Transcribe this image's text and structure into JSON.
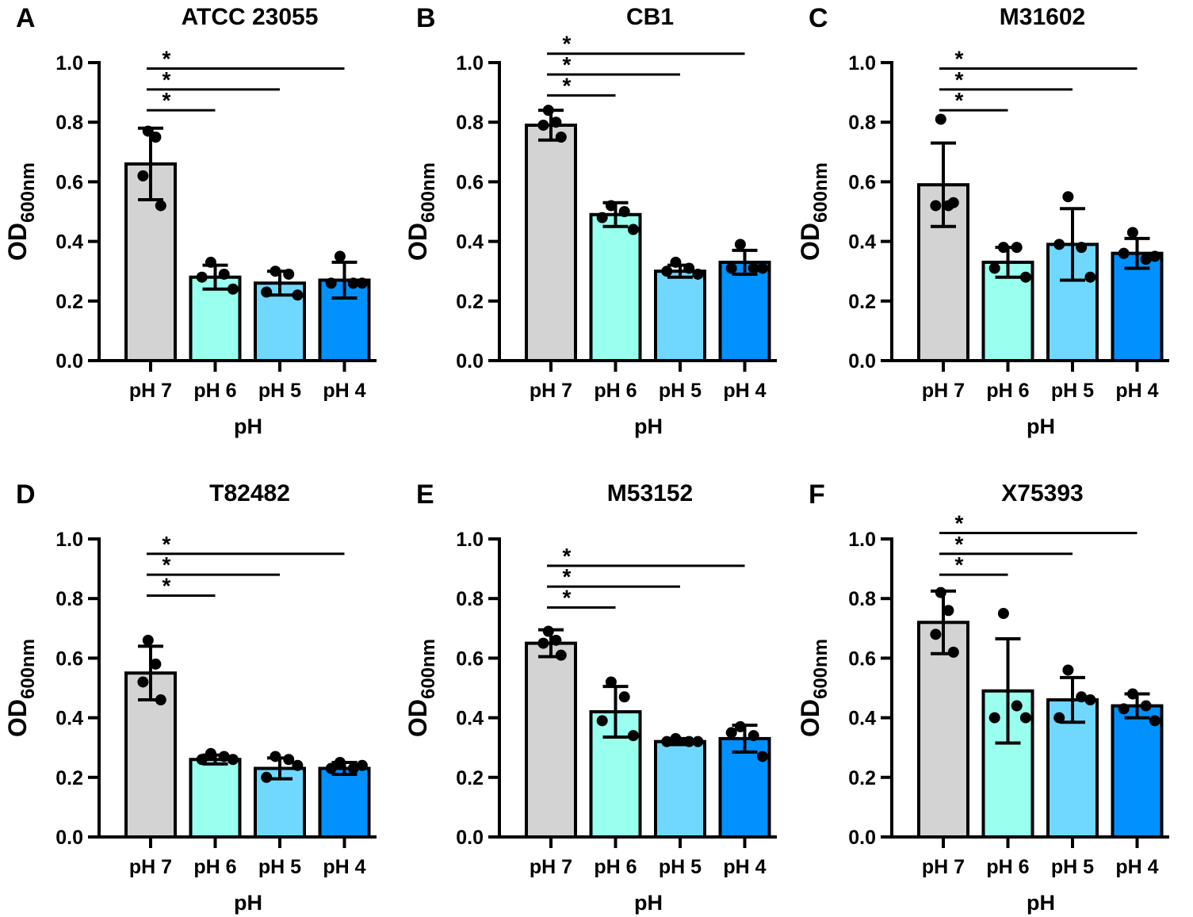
{
  "colors": {
    "pH 7": "#d3d3d3",
    "pH 6": "#99ffee",
    "pH 5": "#70d8ff",
    "pH 4": "#0091ff"
  },
  "chart_data": [
    {
      "type": "bar",
      "panel": "A",
      "title": "ATCC 23055",
      "xlabel": "pH",
      "ylabel": "OD",
      "ylabel_sub": "600nm",
      "ylim": [
        0,
        1
      ],
      "yticks": [
        "0.0",
        "0.2",
        "0.4",
        "0.6",
        "0.8",
        "1.0"
      ],
      "categories": [
        "pH 7",
        "pH 6",
        "pH 5",
        "pH 4"
      ],
      "values": [
        0.66,
        0.28,
        0.26,
        0.27
      ],
      "sd": [
        0.12,
        0.04,
        0.04,
        0.06
      ],
      "points": [
        [
          0.77,
          0.75,
          0.62,
          0.52
        ],
        [
          0.33,
          0.29,
          0.28,
          0.24
        ],
        [
          0.3,
          0.29,
          0.23,
          0.22
        ],
        [
          0.35,
          0.26,
          0.26,
          0.26
        ]
      ],
      "significance": [
        {
          "from": "pH 7",
          "to": "pH 6",
          "level": 0.84,
          "label": "*"
        },
        {
          "from": "pH 7",
          "to": "pH 5",
          "level": 0.91,
          "label": "*"
        },
        {
          "from": "pH 7",
          "to": "pH 4",
          "level": 0.98,
          "label": "*"
        }
      ]
    },
    {
      "type": "bar",
      "panel": "B",
      "title": "CB1",
      "xlabel": "pH",
      "ylabel": "OD",
      "ylabel_sub": "600nm",
      "ylim": [
        0,
        1
      ],
      "yticks": [
        "0.0",
        "0.2",
        "0.4",
        "0.6",
        "0.8",
        "1.0"
      ],
      "categories": [
        "pH 7",
        "pH 6",
        "pH 5",
        "pH 4"
      ],
      "values": [
        0.79,
        0.49,
        0.3,
        0.33
      ],
      "sd": [
        0.05,
        0.04,
        0.02,
        0.04
      ],
      "points": [
        [
          0.84,
          0.8,
          0.79,
          0.75
        ],
        [
          0.52,
          0.5,
          0.48,
          0.44
        ],
        [
          0.33,
          0.31,
          0.3,
          0.29
        ],
        [
          0.39,
          0.31,
          0.31,
          0.31
        ]
      ],
      "significance": [
        {
          "from": "pH 7",
          "to": "pH 6",
          "level": 0.89,
          "label": "*"
        },
        {
          "from": "pH 7",
          "to": "pH 5",
          "level": 0.96,
          "label": "*"
        },
        {
          "from": "pH 7",
          "to": "pH 4",
          "level": 1.03,
          "label": "*"
        }
      ]
    },
    {
      "type": "bar",
      "panel": "C",
      "title": "M31602",
      "xlabel": "pH",
      "ylabel": "OD",
      "ylabel_sub": "600nm",
      "ylim": [
        0,
        1
      ],
      "yticks": [
        "0.0",
        "0.2",
        "0.4",
        "0.6",
        "0.8",
        "1.0"
      ],
      "categories": [
        "pH 7",
        "pH 6",
        "pH 5",
        "pH 4"
      ],
      "values": [
        0.59,
        0.33,
        0.39,
        0.36
      ],
      "sd": [
        0.14,
        0.05,
        0.12,
        0.05
      ],
      "points": [
        [
          0.81,
          0.52,
          0.52,
          0.53
        ],
        [
          0.38,
          0.38,
          0.31,
          0.28
        ],
        [
          0.55,
          0.38,
          0.39,
          0.28
        ],
        [
          0.43,
          0.34,
          0.36,
          0.35
        ]
      ],
      "significance": [
        {
          "from": "pH 7",
          "to": "pH 6",
          "level": 0.84,
          "label": "*"
        },
        {
          "from": "pH 7",
          "to": "pH 5",
          "level": 0.91,
          "label": "*"
        },
        {
          "from": "pH 7",
          "to": "pH 4",
          "level": 0.98,
          "label": "*"
        }
      ]
    },
    {
      "type": "bar",
      "panel": "D",
      "title": "T82482",
      "xlabel": "pH",
      "ylabel": "OD",
      "ylabel_sub": "600nm",
      "ylim": [
        0,
        1
      ],
      "yticks": [
        "0.0",
        "0.2",
        "0.4",
        "0.6",
        "0.8",
        "1.0"
      ],
      "categories": [
        "pH 7",
        "pH 6",
        "pH 5",
        "pH 4"
      ],
      "values": [
        0.55,
        0.26,
        0.23,
        0.23
      ],
      "sd": [
        0.09,
        0.015,
        0.035,
        0.02
      ],
      "points": [
        [
          0.66,
          0.58,
          0.52,
          0.46
        ],
        [
          0.28,
          0.27,
          0.26,
          0.26
        ],
        [
          0.27,
          0.26,
          0.2,
          0.24
        ],
        [
          0.25,
          0.23,
          0.23,
          0.24
        ]
      ],
      "significance": [
        {
          "from": "pH 7",
          "to": "pH 6",
          "level": 0.81,
          "label": "*"
        },
        {
          "from": "pH 7",
          "to": "pH 5",
          "level": 0.88,
          "label": "*"
        },
        {
          "from": "pH 7",
          "to": "pH 4",
          "level": 0.95,
          "label": "*"
        }
      ]
    },
    {
      "type": "bar",
      "panel": "E",
      "title": "M53152",
      "xlabel": "pH",
      "ylabel": "OD",
      "ylabel_sub": "600nm",
      "ylim": [
        0,
        1
      ],
      "yticks": [
        "0.0",
        "0.2",
        "0.4",
        "0.6",
        "0.8",
        "1.0"
      ],
      "categories": [
        "pH 7",
        "pH 6",
        "pH 5",
        "pH 4"
      ],
      "values": [
        0.65,
        0.42,
        0.32,
        0.33
      ],
      "sd": [
        0.045,
        0.085,
        0.01,
        0.045
      ],
      "points": [
        [
          0.69,
          0.66,
          0.65,
          0.61
        ],
        [
          0.52,
          0.47,
          0.39,
          0.34
        ],
        [
          0.33,
          0.32,
          0.32,
          0.32
        ],
        [
          0.37,
          0.34,
          0.35,
          0.27
        ]
      ],
      "significance": [
        {
          "from": "pH 7",
          "to": "pH 6",
          "level": 0.77,
          "label": "*"
        },
        {
          "from": "pH 7",
          "to": "pH 5",
          "level": 0.84,
          "label": "*"
        },
        {
          "from": "pH 7",
          "to": "pH 4",
          "level": 0.91,
          "label": "*"
        }
      ]
    },
    {
      "type": "bar",
      "panel": "F",
      "title": "X75393",
      "xlabel": "pH",
      "ylabel": "OD",
      "ylabel_sub": "600nm",
      "ylim": [
        0,
        1
      ],
      "yticks": [
        "0.0",
        "0.2",
        "0.4",
        "0.6",
        "0.8",
        "1.0"
      ],
      "categories": [
        "pH 7",
        "pH 6",
        "pH 5",
        "pH 4"
      ],
      "values": [
        0.72,
        0.49,
        0.46,
        0.44
      ],
      "sd": [
        0.105,
        0.175,
        0.075,
        0.04
      ],
      "points": [
        [
          0.82,
          0.76,
          0.68,
          0.62
        ],
        [
          0.75,
          0.44,
          0.4,
          0.4
        ],
        [
          0.56,
          0.47,
          0.4,
          0.46
        ],
        [
          0.48,
          0.44,
          0.43,
          0.39
        ]
      ],
      "significance": [
        {
          "from": "pH 7",
          "to": "pH 6",
          "level": 0.88,
          "label": "*"
        },
        {
          "from": "pH 7",
          "to": "pH 5",
          "level": 0.95,
          "label": "*"
        },
        {
          "from": "pH 7",
          "to": "pH 4",
          "level": 1.02,
          "label": "*"
        }
      ]
    }
  ]
}
